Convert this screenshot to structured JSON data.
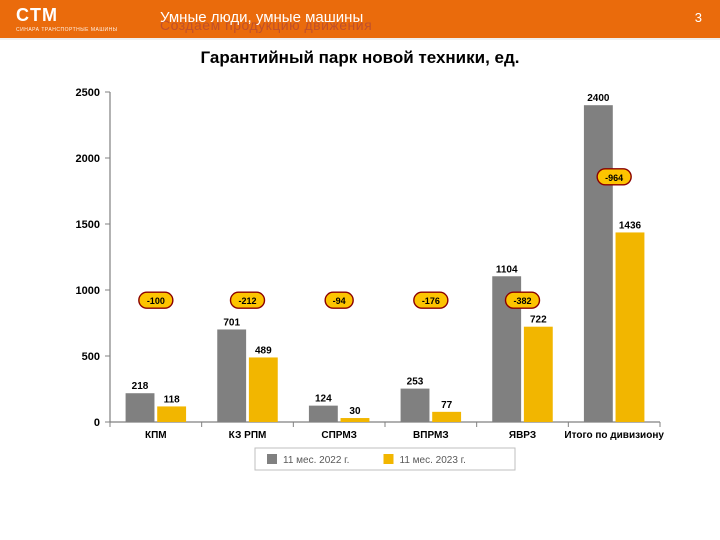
{
  "header": {
    "logo_text": "CTM",
    "logo_sub": "СИНАРА ТРАНСПОРТНЫЕ МАШИНЫ",
    "tagline": "Умные люди, умные машины",
    "phantom_text": "Создаем продукцию движения",
    "page_number": "3"
  },
  "chart": {
    "title": "Гарантийный парк новой техники, ед.",
    "type": "bar",
    "categories": [
      "КПМ",
      "КЗ РПМ",
      "СПРМЗ",
      "ВПРМЗ",
      "ЯВРЗ",
      "Итого по дивизиону"
    ],
    "series": [
      {
        "name": "11 мес. 2022 г.",
        "color": "#808080",
        "values": [
          218,
          701,
          124,
          253,
          1104,
          2400
        ]
      },
      {
        "name": "11 мес. 2023 г.",
        "color": "#f2b600",
        "values": [
          118,
          489,
          30,
          77,
          722,
          1436
        ]
      }
    ],
    "deltas": [
      "-100",
      "-212",
      "-94",
      "-176",
      "-382",
      "-964"
    ],
    "delta_positions_y": [
      915,
      915,
      915,
      915,
      915,
      1850
    ],
    "ylim": [
      0,
      2500
    ],
    "ytick_step": 500,
    "axis_color": "#808080",
    "grid_color": "#bfbfbf",
    "background_color": "#ffffff",
    "bar_group_width": 0.66,
    "bar_gap": 0.03,
    "badge_fill": "#fdc400",
    "badge_stroke": "#8a0000",
    "label_fontsize": 10,
    "axis_fontsize": 11,
    "legend_fontsize": 10
  }
}
